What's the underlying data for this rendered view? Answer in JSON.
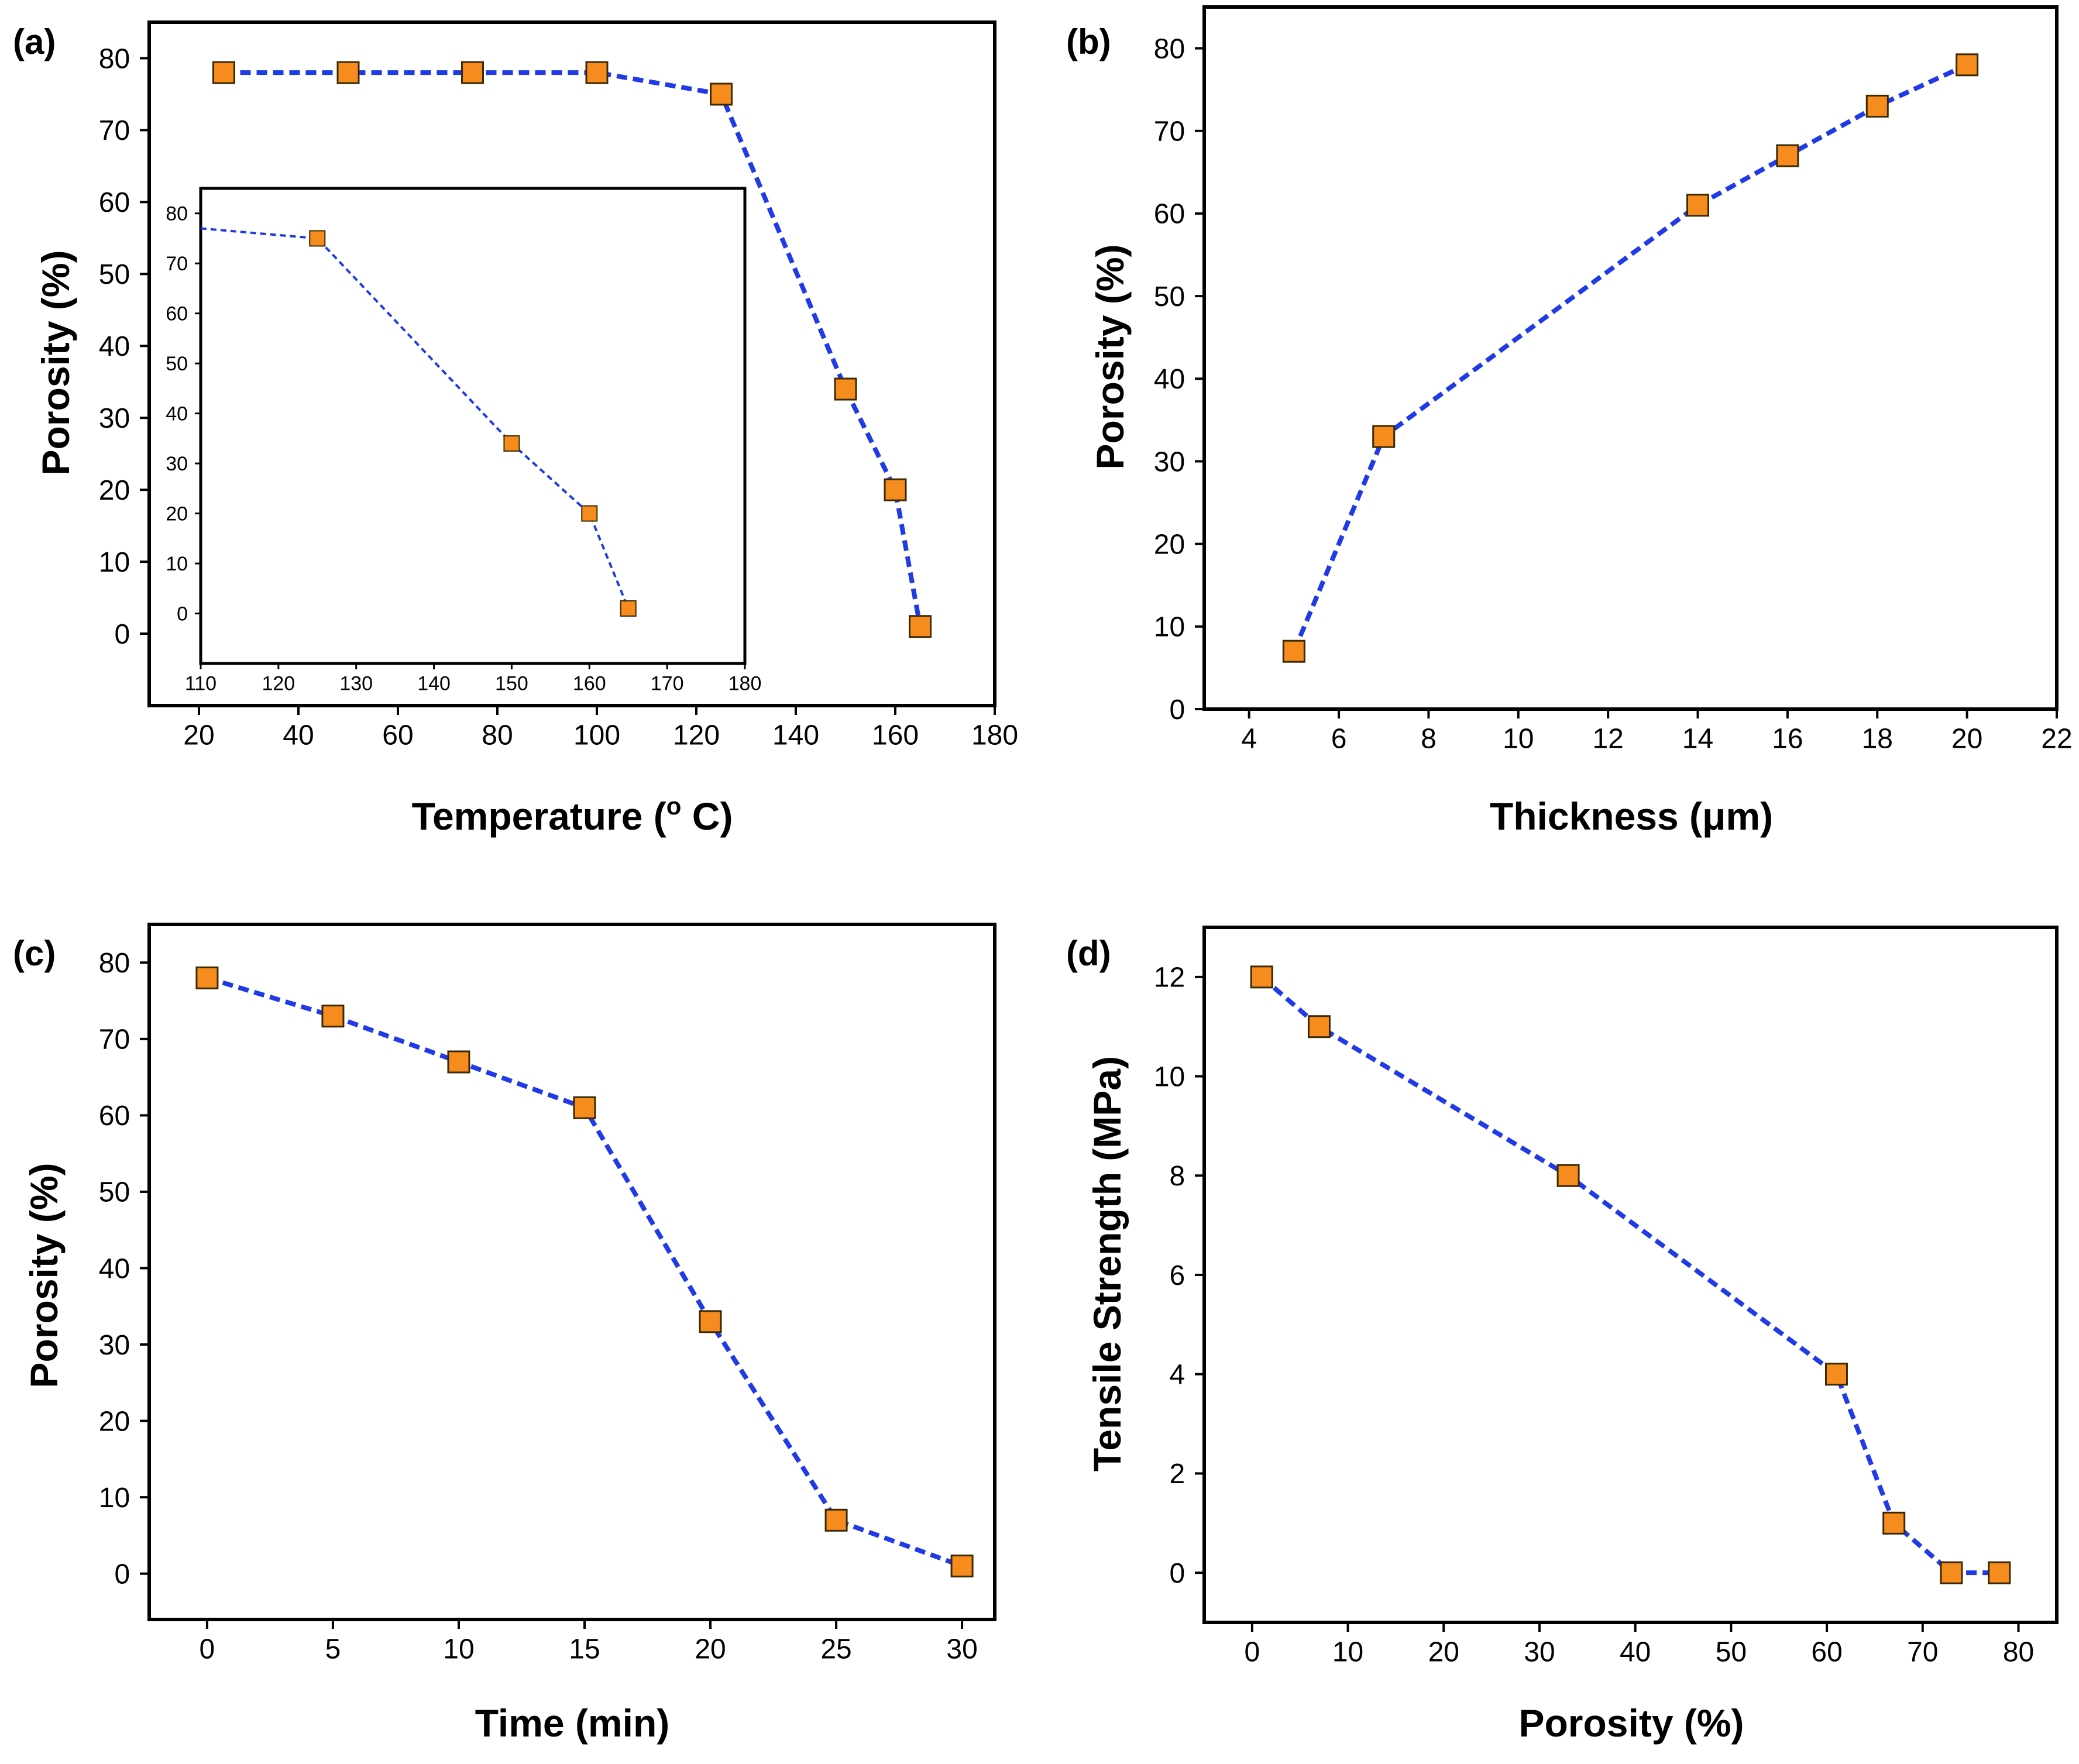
{
  "figure": {
    "panel_labels": [
      "(a)",
      "(b)",
      "(c)",
      "(d)"
    ]
  },
  "colors": {
    "line": "#1f3ae6",
    "marker_fill": "#f68c1e",
    "marker_edge": "#3a2a00",
    "axes": "#000000"
  },
  "chart_data": [
    {
      "panel": "(a)",
      "type": "line",
      "xlabel": "Temperature (",
      "xlabel_sup": "o",
      "xlabel_suffix": " C)",
      "ylabel": "Porosity (%)",
      "xlim": [
        10,
        180
      ],
      "ylim": [
        -10,
        85
      ],
      "xticks": [
        20,
        40,
        60,
        80,
        100,
        120,
        140,
        160,
        180
      ],
      "yticks": [
        0,
        10,
        20,
        30,
        40,
        50,
        60,
        70,
        80
      ],
      "x": [
        25,
        50,
        75,
        100,
        125,
        150,
        160,
        165
      ],
      "y": [
        78,
        78,
        78,
        78,
        75,
        34,
        20,
        1
      ],
      "inset": {
        "type": "line",
        "xlim": [
          110,
          180
        ],
        "ylim": [
          -10,
          85
        ],
        "xticks": [
          110,
          120,
          130,
          140,
          150,
          160,
          170,
          180
        ],
        "yticks": [
          0,
          10,
          20,
          30,
          40,
          50,
          60,
          70,
          80
        ],
        "x": [
          110,
          125,
          150,
          160,
          165
        ],
        "y": [
          77,
          75,
          34,
          20,
          1
        ],
        "marker_x": [
          125,
          150,
          160,
          165
        ],
        "marker_y": [
          75,
          34,
          20,
          1
        ]
      }
    },
    {
      "panel": "(b)",
      "type": "line",
      "xlabel": "Thickness (μm)",
      "ylabel": "Porosity (%)",
      "xlim": [
        3,
        22
      ],
      "ylim": [
        0,
        85
      ],
      "xticks": [
        4,
        6,
        8,
        10,
        12,
        14,
        16,
        18,
        20,
        22
      ],
      "yticks": [
        0,
        10,
        20,
        30,
        40,
        50,
        60,
        70,
        80
      ],
      "x": [
        5,
        7,
        14,
        16,
        18,
        20
      ],
      "y": [
        7,
        33,
        61,
        67,
        73,
        78
      ]
    },
    {
      "panel": "(c)",
      "type": "line",
      "xlabel": "Time (min)",
      "ylabel": "Porosity (%)",
      "xlim": [
        -2.3,
        31.3
      ],
      "ylim": [
        -6,
        85
      ],
      "xticks": [
        0,
        5,
        10,
        15,
        20,
        25,
        30
      ],
      "yticks": [
        0,
        10,
        20,
        30,
        40,
        50,
        60,
        70,
        80
      ],
      "x": [
        0,
        5,
        10,
        15,
        20,
        25,
        30
      ],
      "y": [
        78,
        73,
        67,
        61,
        33,
        7,
        1
      ]
    },
    {
      "panel": "(d)",
      "type": "line",
      "xlabel": "Porosity (%)",
      "ylabel": "Tensile Strength (MPa)",
      "xlim": [
        -5,
        84
      ],
      "ylim": [
        -1,
        13
      ],
      "xticks": [
        0,
        10,
        20,
        30,
        40,
        50,
        60,
        70,
        80
      ],
      "yticks": [
        0,
        2,
        4,
        6,
        8,
        10,
        12
      ],
      "x": [
        1,
        7,
        33,
        61,
        67,
        73,
        78
      ],
      "y": [
        12,
        11,
        8,
        4,
        1,
        0,
        0
      ]
    }
  ]
}
